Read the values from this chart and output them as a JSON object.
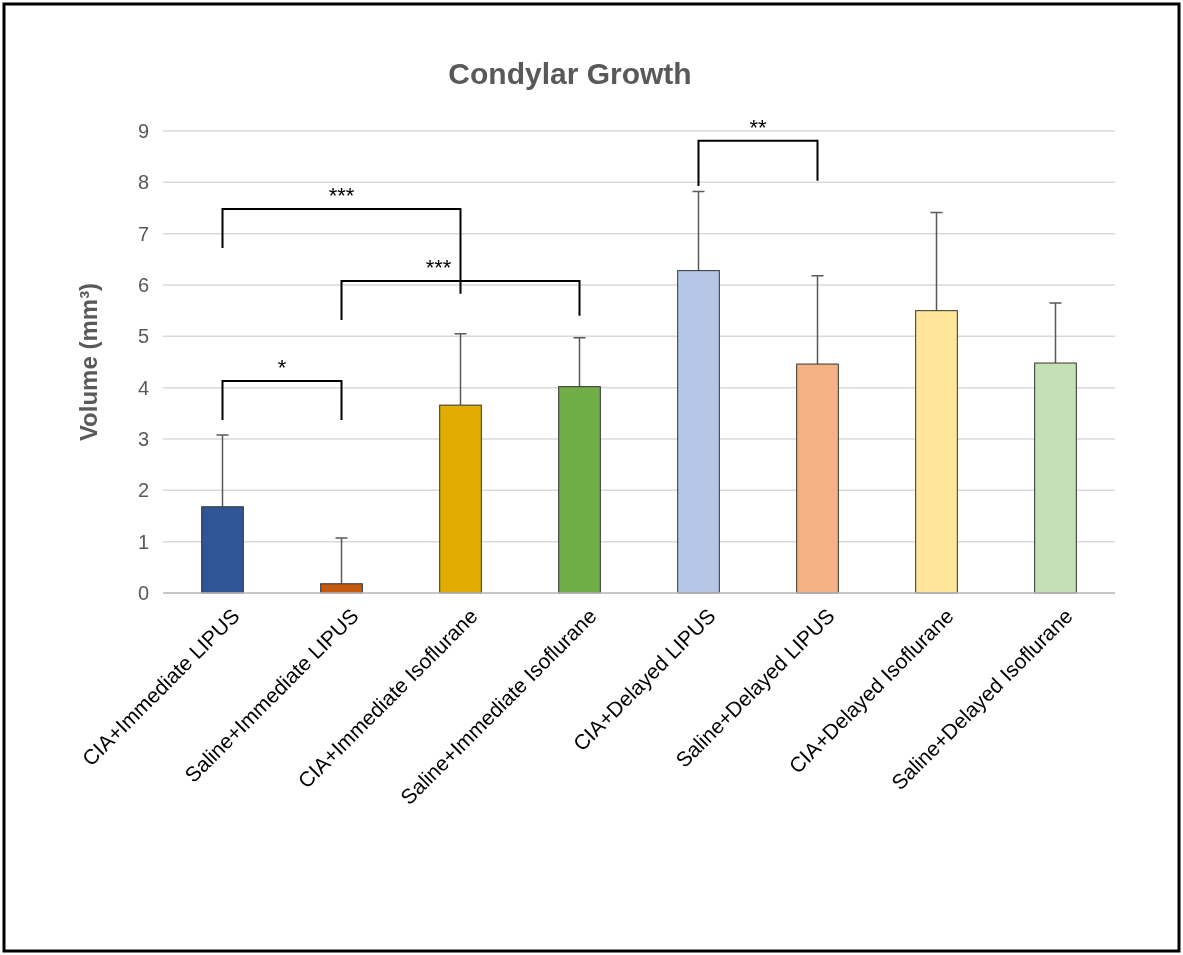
{
  "chart_data": {
    "type": "bar",
    "title": "Condylar Growth",
    "ylabel": "Volume (mm³)",
    "categories": [
      "CIA+Immediate LIPUS",
      "Saline+Immediate LIPUS",
      "CIA+Immediate Isoflurane",
      "Saline+Immediate Isoflurane",
      "CIA+Delayed LIPUS",
      "Saline+Delayed LIPUS",
      "CIA+Delayed Isoflurane",
      "Saline+Delayed Isoflurane"
    ],
    "values": [
      1.68,
      0.18,
      3.66,
      4.02,
      6.28,
      4.46,
      5.5,
      4.48
    ],
    "errors": [
      [
        1.68,
        3.08
      ],
      [
        0.18,
        1.07
      ],
      [
        3.66,
        5.05
      ],
      [
        4.02,
        4.97
      ],
      [
        6.28,
        7.82
      ],
      [
        4.46,
        6.18
      ],
      [
        5.5,
        7.41
      ],
      [
        4.48,
        5.65
      ]
    ],
    "colors": [
      "#2f5597",
      "#c55a11",
      "#e2ac00",
      "#70ad47",
      "#b4c7e7",
      "#f4b183",
      "#ffe699",
      "#c5e0b4"
    ],
    "ylim": [
      0,
      9
    ],
    "yticks": [
      0,
      1,
      2,
      3,
      4,
      5,
      6,
      7,
      8,
      9
    ],
    "grid": "y",
    "annotations": [
      "***",
      "***",
      "*",
      "**"
    ]
  }
}
